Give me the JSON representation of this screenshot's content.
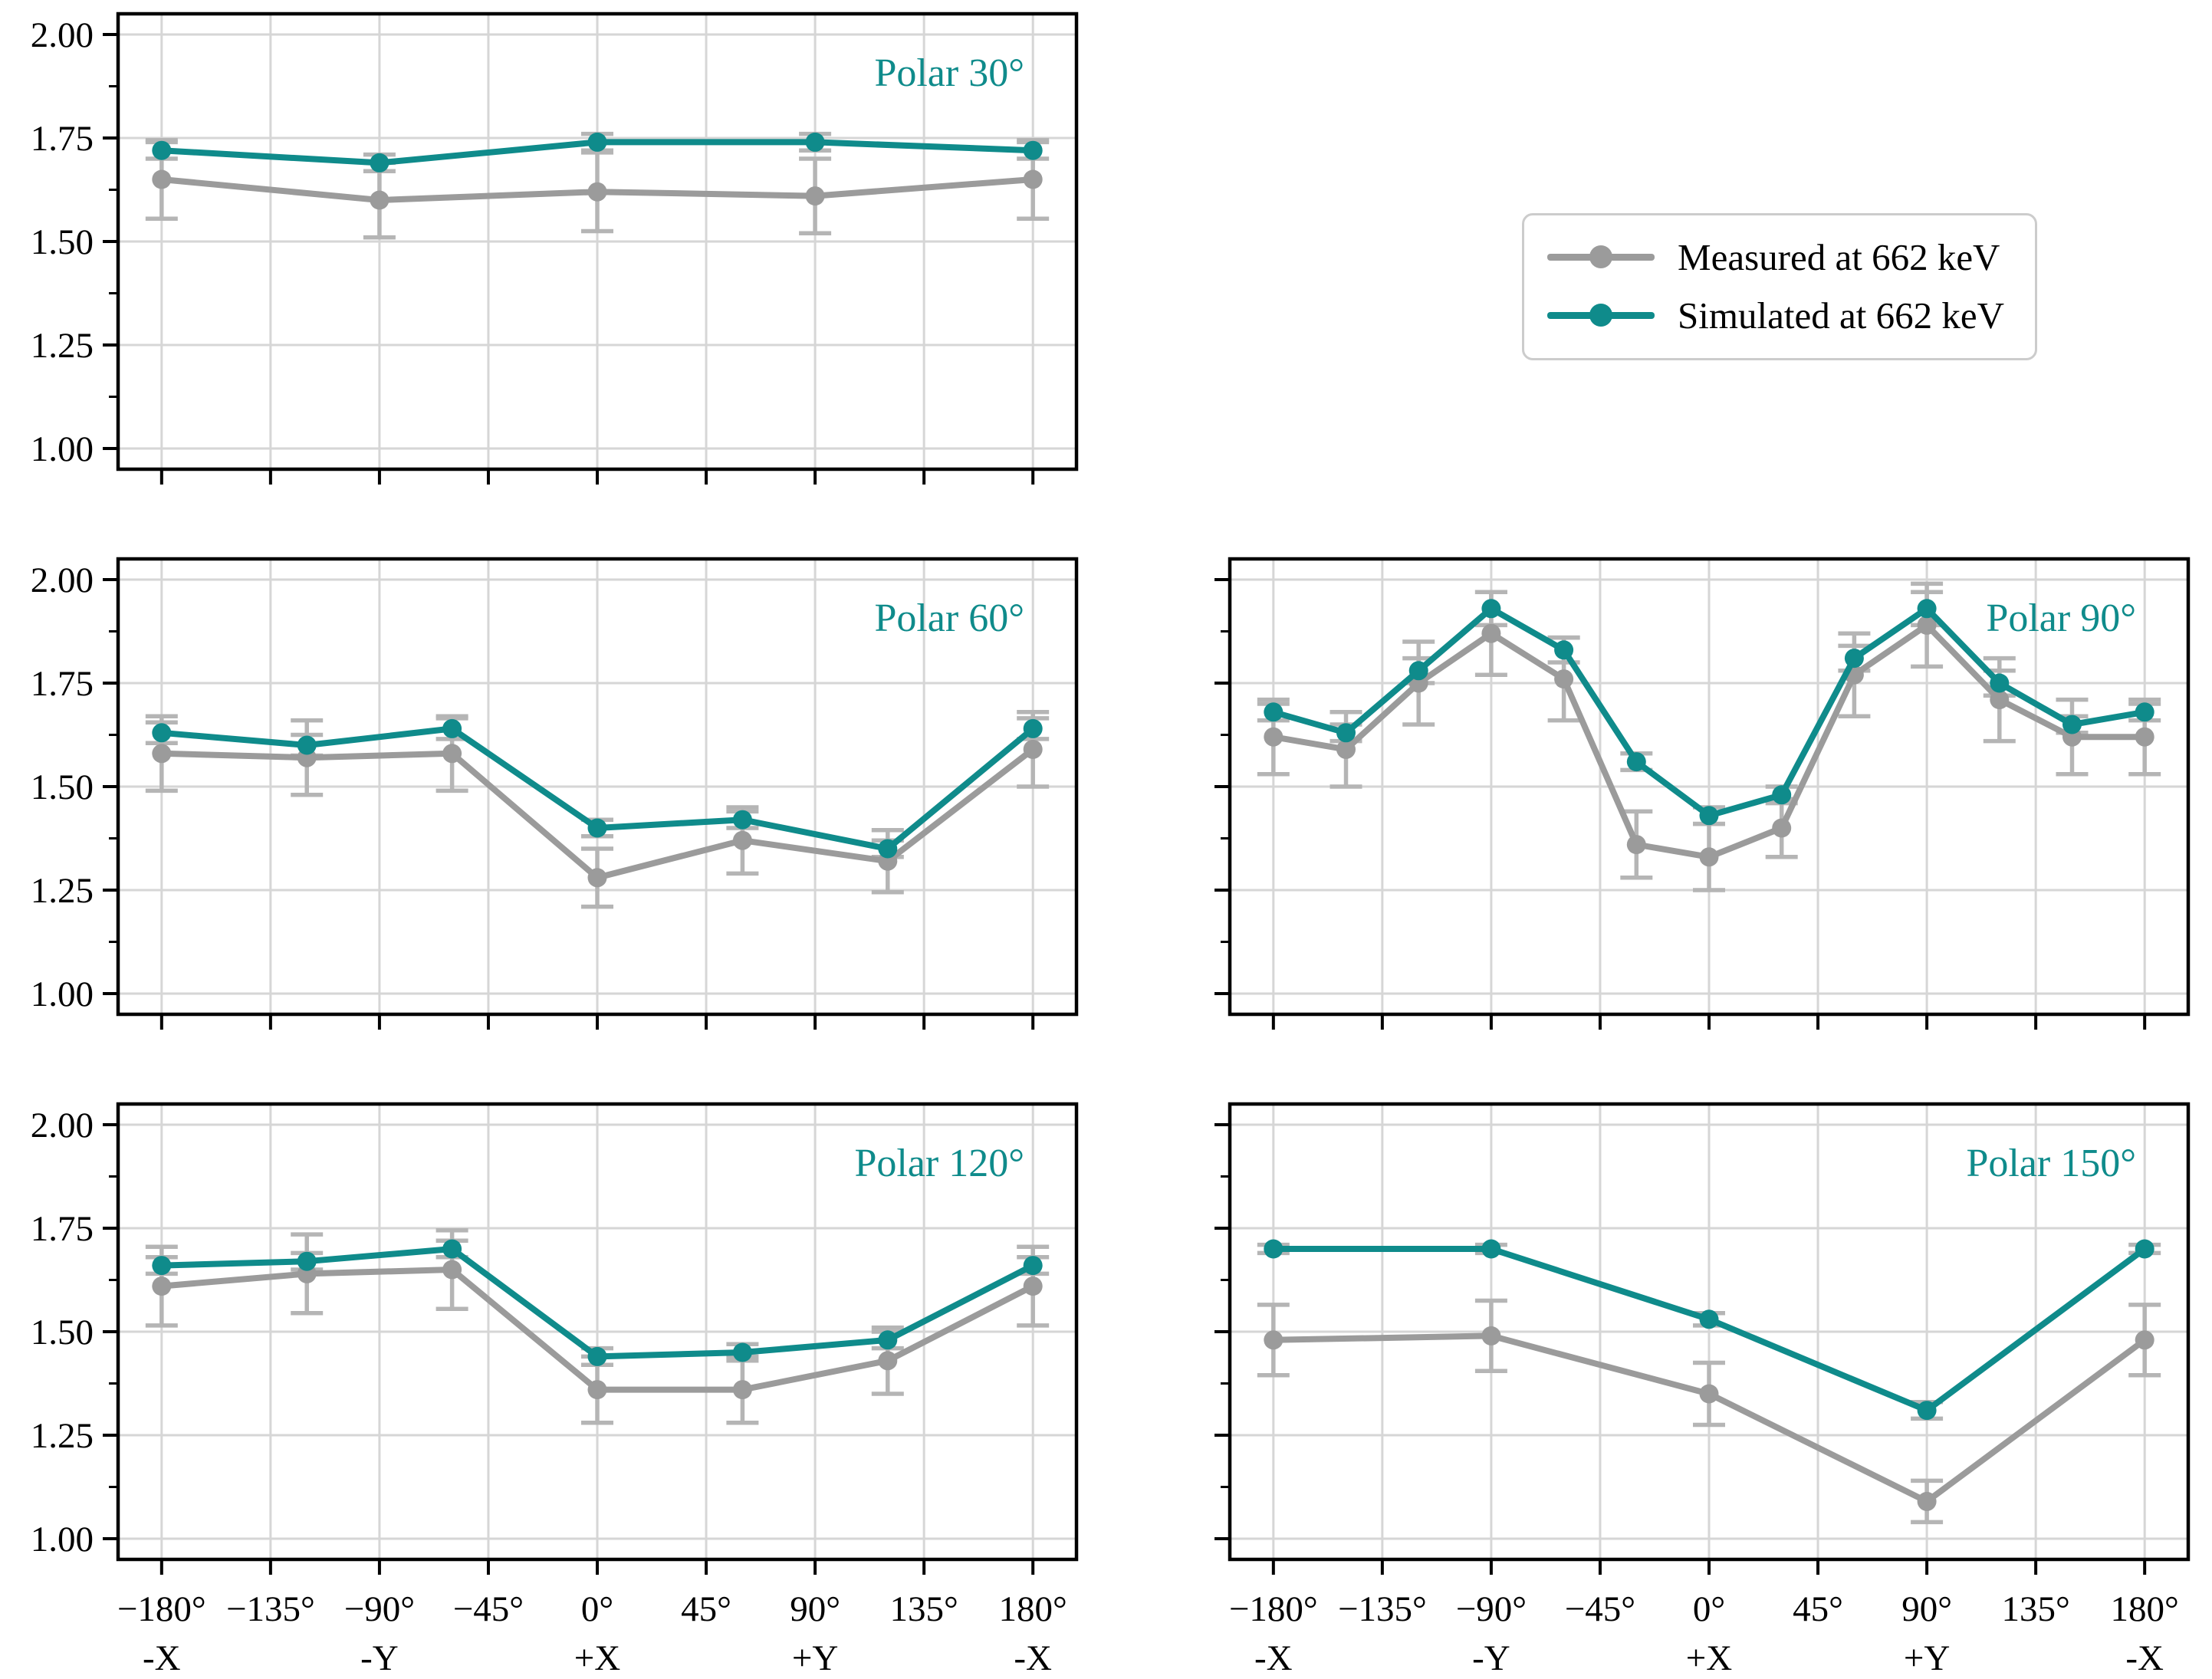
{
  "figure": {
    "background": "#ffffff"
  },
  "colors": {
    "measured": "#9b9b9b",
    "simulated": "#0f8b8b",
    "error_bar": "#b5b5b5",
    "grid": "#d6d6d6",
    "spine": "#000000",
    "tick_label": "#000000",
    "title": "#0f8b8b"
  },
  "legend": {
    "items": [
      {
        "label": "Measured at 662 keV",
        "series": "measured"
      },
      {
        "label": "Simulated at 662 keV",
        "series": "simulated"
      }
    ]
  },
  "axes": {
    "y_range": [
      0.95,
      2.05
    ],
    "x_range": [
      -198,
      198
    ],
    "y_ticks": [
      {
        "value": 2.0,
        "label": "2.00"
      },
      {
        "value": 1.75,
        "label": "1.75"
      },
      {
        "value": 1.5,
        "label": "1.50"
      },
      {
        "value": 1.25,
        "label": "1.25"
      },
      {
        "value": 1.0,
        "label": "1.00"
      }
    ],
    "y_minor_ticks": [
      1.875,
      1.625,
      1.375,
      1.125
    ],
    "x_ticks": [
      {
        "deg": -180,
        "label": "−180°",
        "sublabel": "-X"
      },
      {
        "deg": -135,
        "label": "−135°",
        "sublabel": ""
      },
      {
        "deg": -90,
        "label": "−90°",
        "sublabel": "-Y"
      },
      {
        "deg": -45,
        "label": "−45°",
        "sublabel": ""
      },
      {
        "deg": 0,
        "label": "0°",
        "sublabel": "+X"
      },
      {
        "deg": 45,
        "label": "45°",
        "sublabel": ""
      },
      {
        "deg": 90,
        "label": "90°",
        "sublabel": "+Y"
      },
      {
        "deg": 135,
        "label": "135°",
        "sublabel": ""
      },
      {
        "deg": 180,
        "label": "180°",
        "sublabel": "-X"
      }
    ],
    "grid": true,
    "legend_position": "top-right-cell"
  },
  "chart_data": [
    {
      "type": "line",
      "title": "Polar 30°",
      "grid_pos": {
        "row": 0,
        "col": 0
      },
      "show_y_tick_labels": true,
      "show_x_tick_labels": false,
      "x": [
        -180,
        -90,
        0,
        90,
        180
      ],
      "series": [
        {
          "name": "Measured at 662 keV",
          "color_key": "measured",
          "values": [
            1.65,
            1.6,
            1.62,
            1.61,
            1.65
          ],
          "errors": [
            0.095,
            0.09,
            0.095,
            0.09,
            0.095
          ]
        },
        {
          "name": "Simulated at 662 keV",
          "color_key": "simulated",
          "values": [
            1.72,
            1.69,
            1.74,
            1.74,
            1.72
          ],
          "errors": [
            0.02,
            0.02,
            0.02,
            0.02,
            0.02
          ]
        }
      ]
    },
    {
      "type": "line",
      "title": "Polar 60°",
      "grid_pos": {
        "row": 1,
        "col": 0
      },
      "show_y_tick_labels": true,
      "show_x_tick_labels": false,
      "x": [
        -180,
        -120,
        -60,
        0,
        60,
        120,
        180
      ],
      "series": [
        {
          "name": "Measured at 662 keV",
          "color_key": "measured",
          "values": [
            1.58,
            1.57,
            1.58,
            1.28,
            1.37,
            1.32,
            1.59
          ],
          "errors": [
            0.09,
            0.09,
            0.09,
            0.07,
            0.08,
            0.075,
            0.09
          ]
        },
        {
          "name": "Simulated at 662 keV",
          "color_key": "simulated",
          "values": [
            1.63,
            1.6,
            1.64,
            1.4,
            1.42,
            1.35,
            1.64
          ],
          "errors": [
            0.025,
            0.025,
            0.025,
            0.02,
            0.02,
            0.02,
            0.025
          ]
        }
      ]
    },
    {
      "type": "line",
      "title": "Polar 90°",
      "grid_pos": {
        "row": 1,
        "col": 1
      },
      "show_y_tick_labels": false,
      "show_x_tick_labels": false,
      "x": [
        -180,
        -150,
        -120,
        -90,
        -60,
        -30,
        0,
        30,
        60,
        90,
        120,
        150,
        180
      ],
      "series": [
        {
          "name": "Measured at 662 keV",
          "color_key": "measured",
          "values": [
            1.62,
            1.59,
            1.75,
            1.87,
            1.76,
            1.36,
            1.33,
            1.4,
            1.77,
            1.89,
            1.71,
            1.62,
            1.62
          ],
          "errors": [
            0.09,
            0.09,
            0.1,
            0.1,
            0.1,
            0.08,
            0.08,
            0.07,
            0.1,
            0.1,
            0.1,
            0.09,
            0.09
          ]
        },
        {
          "name": "Simulated at 662 keV",
          "color_key": "simulated",
          "values": [
            1.68,
            1.63,
            1.78,
            1.93,
            1.83,
            1.56,
            1.43,
            1.48,
            1.81,
            1.93,
            1.75,
            1.65,
            1.68
          ],
          "errors": [
            0.02,
            0.02,
            0.03,
            0.04,
            0.03,
            0.02,
            0.02,
            0.02,
            0.03,
            0.04,
            0.03,
            0.02,
            0.02
          ]
        }
      ]
    },
    {
      "type": "line",
      "title": "Polar 120°",
      "grid_pos": {
        "row": 2,
        "col": 0
      },
      "show_y_tick_labels": true,
      "show_x_tick_labels": true,
      "x": [
        -180,
        -120,
        -60,
        0,
        60,
        120,
        180
      ],
      "series": [
        {
          "name": "Measured at 662 keV",
          "color_key": "measured",
          "values": [
            1.61,
            1.64,
            1.65,
            1.36,
            1.36,
            1.43,
            1.61
          ],
          "errors": [
            0.095,
            0.095,
            0.095,
            0.08,
            0.08,
            0.08,
            0.095
          ]
        },
        {
          "name": "Simulated at 662 keV",
          "color_key": "simulated",
          "values": [
            1.66,
            1.67,
            1.7,
            1.44,
            1.45,
            1.48,
            1.66
          ],
          "errors": [
            0.02,
            0.02,
            0.02,
            0.02,
            0.02,
            0.02,
            0.02
          ]
        }
      ]
    },
    {
      "type": "line",
      "title": "Polar 150°",
      "grid_pos": {
        "row": 2,
        "col": 1
      },
      "show_y_tick_labels": false,
      "show_x_tick_labels": true,
      "x": [
        -180,
        -90,
        0,
        90,
        180
      ],
      "series": [
        {
          "name": "Measured at 662 keV",
          "color_key": "measured",
          "values": [
            1.48,
            1.49,
            1.35,
            1.09,
            1.48
          ],
          "errors": [
            0.085,
            0.085,
            0.075,
            0.05,
            0.085
          ]
        },
        {
          "name": "Simulated at 662 keV",
          "color_key": "simulated",
          "values": [
            1.7,
            1.7,
            1.53,
            1.31,
            1.7
          ],
          "errors": [
            0.01,
            0.01,
            0.015,
            0.02,
            0.01
          ]
        }
      ]
    }
  ]
}
